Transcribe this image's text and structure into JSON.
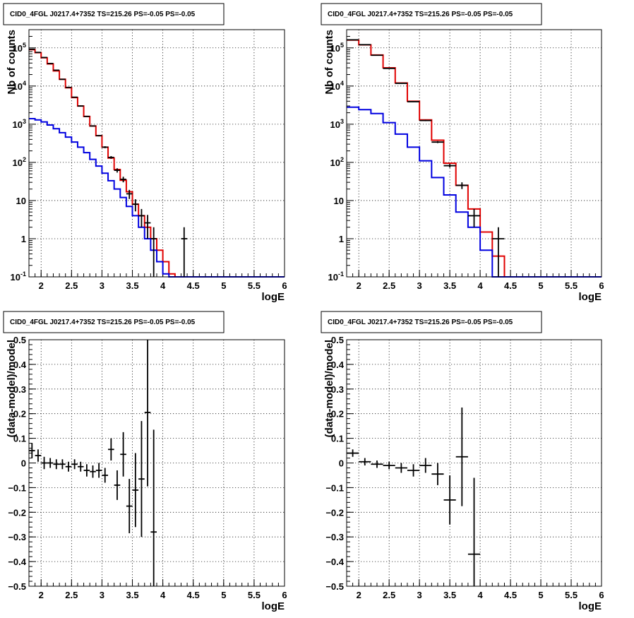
{
  "chart_data": [
    {
      "type": "line",
      "title": "CID0_4FGL J0217.4+7352 TS=215.26 PS=-0.05 PS=-0.05",
      "xlabel": "logE",
      "ylabel": "Nb of counts",
      "xlim": [
        1.8,
        6
      ],
      "ylim": [
        0.1,
        300000
      ],
      "yscale": "log",
      "grid": true,
      "x_ticks": [
        2,
        2.5,
        3,
        3.5,
        4,
        4.5,
        5,
        5.5,
        6
      ],
      "x_tick_labels": [
        "2",
        "2.5",
        "3",
        "3.5",
        "4",
        "4.5",
        "5",
        "5.5",
        "6"
      ],
      "y_ticks": [
        0.1,
        1,
        10,
        100,
        1000,
        10000,
        100000
      ],
      "y_tick_labels": [
        "10^-1",
        "1",
        "10",
        "10^2",
        "10^3",
        "10^4",
        "10^5"
      ],
      "bin_edges": [
        1.8,
        1.9,
        2.0,
        2.1,
        2.2,
        2.3,
        2.4,
        2.5,
        2.6,
        2.7,
        2.8,
        2.9,
        3.0,
        3.1,
        3.2,
        3.3,
        3.4,
        3.5,
        3.6,
        3.7,
        3.8,
        3.9,
        4.0,
        4.1,
        4.2,
        4.3,
        4.4,
        4.5,
        6.0
      ],
      "series": [
        {
          "color": "#e00000",
          "values": [
            90000,
            75000,
            55000,
            38000,
            25000,
            15000,
            9000,
            5000,
            3000,
            1600,
            900,
            500,
            250,
            130,
            65,
            34,
            17,
            8,
            4,
            2,
            1,
            0.5,
            0.25,
            0.12,
            0.1,
            0.1,
            0.1,
            0.1
          ]
        },
        {
          "color": "#0000e0",
          "values": [
            1400,
            1300,
            1150,
            950,
            760,
            600,
            460,
            340,
            250,
            180,
            120,
            80,
            52,
            33,
            20,
            12,
            7,
            4,
            2,
            1,
            0.5,
            0.25,
            0.12,
            0.1,
            0.1,
            0.1,
            0.1,
            0.1
          ]
        }
      ],
      "points": [
        {
          "x": 1.85,
          "y": 92000,
          "ylo": 91000,
          "yhi": 93000
        },
        {
          "x": 1.95,
          "y": 76000,
          "ylo": 75000,
          "yhi": 77000
        },
        {
          "x": 2.05,
          "y": 56000,
          "ylo": 55000,
          "yhi": 57000
        },
        {
          "x": 2.15,
          "y": 39000,
          "ylo": 38000,
          "yhi": 40000
        },
        {
          "x": 2.25,
          "y": 26000,
          "ylo": 25500,
          "yhi": 26500
        },
        {
          "x": 2.35,
          "y": 15000,
          "ylo": 14800,
          "yhi": 15200
        },
        {
          "x": 2.45,
          "y": 9200,
          "ylo": 9000,
          "yhi": 9400
        },
        {
          "x": 2.55,
          "y": 5100,
          "ylo": 5000,
          "yhi": 5200
        },
        {
          "x": 2.65,
          "y": 3000,
          "ylo": 2900,
          "yhi": 3100
        },
        {
          "x": 2.75,
          "y": 1600,
          "ylo": 1550,
          "yhi": 1650
        },
        {
          "x": 2.85,
          "y": 900,
          "ylo": 870,
          "yhi": 930
        },
        {
          "x": 2.95,
          "y": 500,
          "ylo": 480,
          "yhi": 520
        },
        {
          "x": 3.05,
          "y": 250,
          "ylo": 235,
          "yhi": 265
        },
        {
          "x": 3.15,
          "y": 135,
          "ylo": 124,
          "yhi": 146
        },
        {
          "x": 3.25,
          "y": 62,
          "ylo": 54,
          "yhi": 70
        },
        {
          "x": 3.35,
          "y": 36,
          "ylo": 30,
          "yhi": 42
        },
        {
          "x": 3.45,
          "y": 15,
          "ylo": 11,
          "yhi": 19
        },
        {
          "x": 3.55,
          "y": 8,
          "ylo": 5.2,
          "yhi": 10.8
        },
        {
          "x": 3.65,
          "y": 4,
          "ylo": 2,
          "yhi": 6
        },
        {
          "x": 3.75,
          "y": 2.6,
          "ylo": 1,
          "yhi": 4.2
        },
        {
          "x": 3.85,
          "y": 1,
          "ylo": 0.1,
          "yhi": 2
        },
        {
          "x": 4.35,
          "y": 1,
          "ylo": 0.1,
          "yhi": 2
        }
      ]
    },
    {
      "type": "line",
      "title": "CID0_4FGL J0217.4+7352 TS=215.26 PS=-0.05 PS=-0.05",
      "xlabel": "logE",
      "ylabel": "Nb of counts",
      "xlim": [
        1.8,
        6
      ],
      "ylim": [
        0.1,
        300000
      ],
      "yscale": "log",
      "grid": true,
      "x_ticks": [
        2,
        2.5,
        3,
        3.5,
        4,
        4.5,
        5,
        5.5,
        6
      ],
      "x_tick_labels": [
        "2",
        "2.5",
        "3",
        "3.5",
        "4",
        "4.5",
        "5",
        "5.5",
        "6"
      ],
      "y_ticks": [
        0.1,
        1,
        10,
        100,
        1000,
        10000,
        100000
      ],
      "y_tick_labels": [
        "10^-1",
        "1",
        "10",
        "10^2",
        "10^3",
        "10^4",
        "10^5"
      ],
      "bin_edges": [
        1.8,
        2.0,
        2.2,
        2.4,
        2.6,
        2.8,
        3.0,
        3.2,
        3.4,
        3.6,
        3.8,
        4.0,
        4.2,
        4.4,
        4.6,
        6.0
      ],
      "series": [
        {
          "color": "#e00000",
          "values": [
            160000,
            120000,
            65000,
            30000,
            12000,
            4000,
            1300,
            380,
            95,
            25,
            6,
            1.5,
            0.35,
            0.1,
            0.1
          ]
        },
        {
          "color": "#0000e0",
          "values": [
            2800,
            2400,
            1900,
            1100,
            550,
            250,
            110,
            40,
            14,
            5,
            2,
            0.5,
            0.1,
            0.1,
            0.1
          ]
        }
      ],
      "points": [
        {
          "x": 1.9,
          "y": 162000,
          "ylo": 160000,
          "yhi": 164000
        },
        {
          "x": 2.1,
          "y": 121000,
          "ylo": 119500,
          "yhi": 122500
        },
        {
          "x": 2.3,
          "y": 64000,
          "ylo": 63000,
          "yhi": 65000
        },
        {
          "x": 2.5,
          "y": 29000,
          "ylo": 28500,
          "yhi": 29500
        },
        {
          "x": 2.7,
          "y": 11800,
          "ylo": 11500,
          "yhi": 12100
        },
        {
          "x": 2.9,
          "y": 3900,
          "ylo": 3800,
          "yhi": 4000
        },
        {
          "x": 3.1,
          "y": 1250,
          "ylo": 1200,
          "yhi": 1300
        },
        {
          "x": 3.3,
          "y": 340,
          "ylo": 320,
          "yhi": 360
        },
        {
          "x": 3.5,
          "y": 82,
          "ylo": 73,
          "yhi": 91
        },
        {
          "x": 3.7,
          "y": 25,
          "ylo": 20,
          "yhi": 30
        },
        {
          "x": 3.9,
          "y": 4,
          "ylo": 2,
          "yhi": 6
        },
        {
          "x": 4.3,
          "y": 1,
          "ylo": 0.1,
          "yhi": 2
        }
      ]
    },
    {
      "type": "scatter",
      "title": "CID0_4FGL J0217.4+7352 TS=215.26 PS=-0.05 PS=-0.05",
      "xlabel": "logE",
      "ylabel": "(data-model)/model",
      "xlim": [
        1.8,
        6
      ],
      "ylim": [
        -0.5,
        0.5
      ],
      "grid": true,
      "x_ticks": [
        2,
        2.5,
        3,
        3.5,
        4,
        4.5,
        5,
        5.5,
        6
      ],
      "x_tick_labels": [
        "2",
        "2.5",
        "3",
        "3.5",
        "4",
        "4.5",
        "5",
        "5.5",
        "6"
      ],
      "y_ticks": [
        -0.5,
        -0.4,
        -0.3,
        -0.2,
        -0.1,
        0,
        0.1,
        0.2,
        0.3,
        0.4,
        0.5
      ],
      "y_tick_labels": [
        "−0.5",
        "−0.4",
        "−0.3",
        "−0.2",
        "−0.1",
        "0",
        "0.1",
        "0.2",
        "0.3",
        "0.4",
        "0.5"
      ],
      "xerr": 0.05,
      "points": [
        {
          "x": 1.85,
          "y": 0.05,
          "err": 0.03
        },
        {
          "x": 1.95,
          "y": 0.03,
          "err": 0.025
        },
        {
          "x": 2.05,
          "y": 0.0,
          "err": 0.025
        },
        {
          "x": 2.15,
          "y": 0.0,
          "err": 0.02
        },
        {
          "x": 2.25,
          "y": -0.005,
          "err": 0.02
        },
        {
          "x": 2.35,
          "y": -0.005,
          "err": 0.02
        },
        {
          "x": 2.45,
          "y": -0.015,
          "err": 0.02
        },
        {
          "x": 2.55,
          "y": -0.005,
          "err": 0.02
        },
        {
          "x": 2.65,
          "y": -0.015,
          "err": 0.02
        },
        {
          "x": 2.75,
          "y": -0.03,
          "err": 0.025
        },
        {
          "x": 2.85,
          "y": -0.035,
          "err": 0.025
        },
        {
          "x": 2.95,
          "y": -0.03,
          "err": 0.03
        },
        {
          "x": 3.05,
          "y": -0.05,
          "err": 0.03
        },
        {
          "x": 3.15,
          "y": 0.055,
          "err": 0.045
        },
        {
          "x": 3.25,
          "y": -0.09,
          "err": 0.06
        },
        {
          "x": 3.35,
          "y": 0.035,
          "err": 0.09
        },
        {
          "x": 3.45,
          "y": -0.175,
          "err": 0.11
        },
        {
          "x": 3.55,
          "y": -0.11,
          "err": 0.15
        },
        {
          "x": 3.65,
          "y": -0.065,
          "err": 0.235
        },
        {
          "x": 3.75,
          "y": 0.205,
          "err": 0.3
        },
        {
          "x": 3.85,
          "y": -0.28,
          "err": 0.415
        }
      ]
    },
    {
      "type": "scatter",
      "title": "CID0_4FGL J0217.4+7352 TS=215.26 PS=-0.05 PS=-0.05",
      "xlabel": "logE",
      "ylabel": "(data-model)/model",
      "xlim": [
        1.8,
        6
      ],
      "ylim": [
        -0.5,
        0.5
      ],
      "grid": true,
      "x_ticks": [
        2,
        2.5,
        3,
        3.5,
        4,
        4.5,
        5,
        5.5,
        6
      ],
      "x_tick_labels": [
        "2",
        "2.5",
        "3",
        "3.5",
        "4",
        "4.5",
        "5",
        "5.5",
        "6"
      ],
      "y_ticks": [
        -0.5,
        -0.4,
        -0.3,
        -0.2,
        -0.1,
        0,
        0.1,
        0.2,
        0.3,
        0.4,
        0.5
      ],
      "y_tick_labels": [
        "−0.5",
        "−0.4",
        "−0.3",
        "−0.2",
        "−0.1",
        "0",
        "0.1",
        "0.2",
        "0.3",
        "0.4",
        "0.5"
      ],
      "xerr": 0.1,
      "points": [
        {
          "x": 1.9,
          "y": 0.04,
          "err": 0.015
        },
        {
          "x": 2.1,
          "y": 0.005,
          "err": 0.015
        },
        {
          "x": 2.3,
          "y": -0.005,
          "err": 0.015
        },
        {
          "x": 2.5,
          "y": -0.01,
          "err": 0.015
        },
        {
          "x": 2.7,
          "y": -0.02,
          "err": 0.02
        },
        {
          "x": 2.9,
          "y": -0.03,
          "err": 0.025
        },
        {
          "x": 3.1,
          "y": -0.01,
          "err": 0.03
        },
        {
          "x": 3.3,
          "y": -0.045,
          "err": 0.045
        },
        {
          "x": 3.5,
          "y": -0.15,
          "err": 0.1
        },
        {
          "x": 3.7,
          "y": 0.025,
          "err": 0.2
        },
        {
          "x": 3.9,
          "y": -0.37,
          "err": 0.31
        }
      ]
    }
  ]
}
